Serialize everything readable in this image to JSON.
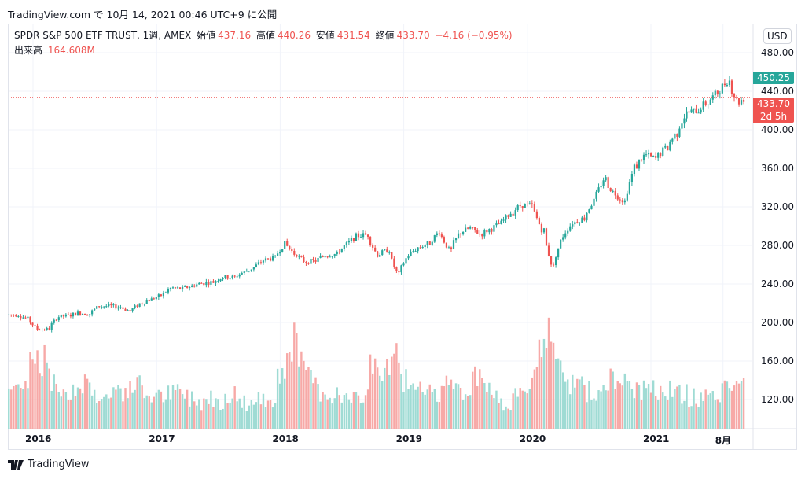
{
  "published": "TradingView.com で 10月 14, 2021 00:46 UTC+9 に公開",
  "legend": {
    "symbol": "SPDR S&P 500 ETF TRUST, 1週, AMEX",
    "open_label": "始値",
    "open": "437.16",
    "high_label": "高値",
    "high": "440.26",
    "low_label": "安値",
    "low": "431.54",
    "close_label": "終値",
    "close": "433.70",
    "change": "−4.16 (−0.95%)",
    "volume_label": "出来高",
    "volume": "164.608M"
  },
  "currency_button": "USD",
  "price_tags": {
    "high_marker": "450.25",
    "last_price": "433.70",
    "countdown": "2d 5h"
  },
  "colors": {
    "up": "#26a69a",
    "down": "#ef5350",
    "up_vol": "#9fdbd4",
    "down_vol": "#f7a9a7"
  },
  "footer_logo": "TradingView",
  "chart_data": {
    "type": "candlestick",
    "title": "SPDR S&P 500 ETF TRUST, 1週, AMEX",
    "y_ticks": [
      "480.00",
      "440.00",
      "400.00",
      "360.00",
      "320.00",
      "280.00",
      "240.00",
      "200.00",
      "160.00",
      "120.00"
    ],
    "x_ticks": [
      "2016",
      "2017",
      "2018",
      "2019",
      "2020",
      "2021",
      "8月"
    ],
    "ylim": [
      100,
      490
    ],
    "start_month": "2015-11",
    "monthly_close": [
      208,
      204,
      193,
      193,
      206,
      207,
      210,
      209,
      217,
      217,
      216,
      212,
      220,
      224,
      228,
      236,
      235,
      238,
      241,
      242,
      247,
      247,
      252,
      257,
      265,
      267,
      282,
      271,
      263,
      264,
      270,
      271,
      281,
      290,
      291,
      270,
      275,
      250,
      270,
      278,
      282,
      294,
      275,
      293,
      298,
      292,
      297,
      303,
      314,
      322,
      321,
      296,
      258,
      290,
      304,
      308,
      326,
      349,
      334,
      326,
      362,
      374,
      370,
      381,
      396,
      417,
      420,
      428,
      438,
      451,
      429,
      434
    ],
    "monthly_volume_M": [
      95,
      110,
      150,
      140,
      100,
      90,
      95,
      105,
      85,
      80,
      95,
      90,
      100,
      85,
      80,
      85,
      90,
      80,
      75,
      80,
      75,
      85,
      75,
      70,
      75,
      80,
      120,
      170,
      130,
      110,
      90,
      85,
      80,
      75,
      85,
      140,
      120,
      150,
      110,
      90,
      85,
      80,
      110,
      95,
      85,
      115,
      90,
      80,
      75,
      80,
      100,
      150,
      185,
      120,
      100,
      110,
      90,
      85,
      110,
      100,
      95,
      90,
      100,
      95,
      90,
      85,
      80,
      85,
      80,
      90,
      110,
      100
    ]
  }
}
